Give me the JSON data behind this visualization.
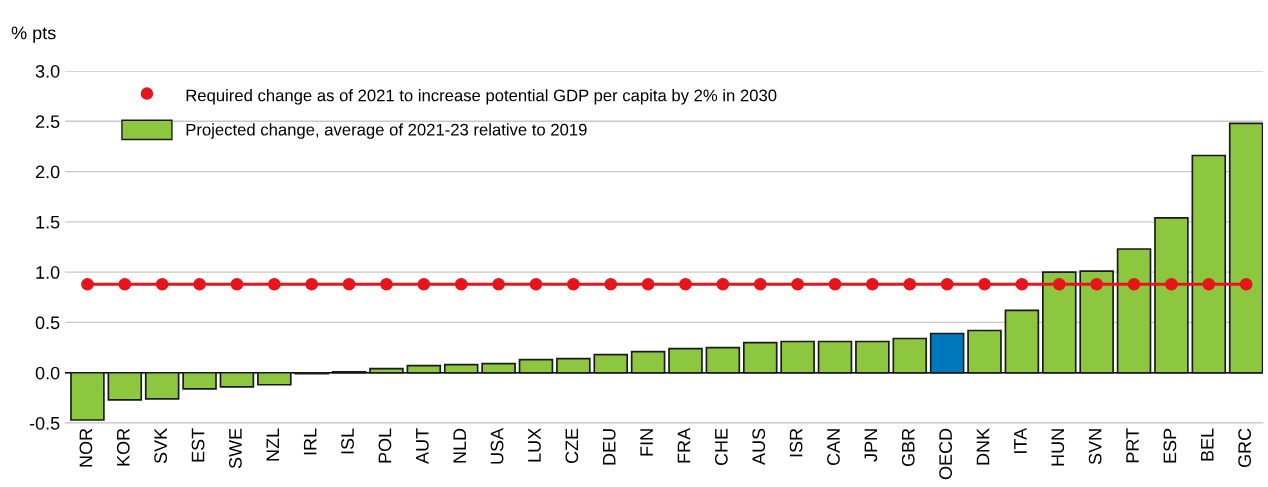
{
  "chart_data": {
    "type": "bar",
    "ylabel": "% pts",
    "categories": [
      "NOR",
      "KOR",
      "SVK",
      "EST",
      "SWE",
      "NZL",
      "IRL",
      "ISL",
      "POL",
      "AUT",
      "NLD",
      "USA",
      "LUX",
      "CZE",
      "DEU",
      "FIN",
      "FRA",
      "CHE",
      "AUS",
      "ISR",
      "CAN",
      "JPN",
      "GBR",
      "OECD",
      "DNK",
      "ITA",
      "HUN",
      "SVN",
      "PRT",
      "ESP",
      "BEL",
      "GRC"
    ],
    "series": [
      {
        "name": "Projected change, average of 2021-23 relative to 2019",
        "color": "#8dc63f",
        "colors": [
          "#8dc63f",
          "#8dc63f",
          "#8dc63f",
          "#8dc63f",
          "#8dc63f",
          "#8dc63f",
          "#8dc63f",
          "#8dc63f",
          "#8dc63f",
          "#8dc63f",
          "#8dc63f",
          "#8dc63f",
          "#8dc63f",
          "#8dc63f",
          "#8dc63f",
          "#8dc63f",
          "#8dc63f",
          "#8dc63f",
          "#8dc63f",
          "#8dc63f",
          "#8dc63f",
          "#8dc63f",
          "#8dc63f",
          "#0078be",
          "#8dc63f",
          "#8dc63f",
          "#8dc63f",
          "#8dc63f",
          "#8dc63f",
          "#8dc63f",
          "#8dc63f",
          "#8dc63f"
        ],
        "values": [
          -0.47,
          -0.27,
          -0.26,
          -0.16,
          -0.14,
          -0.12,
          -0.01,
          0.01,
          0.04,
          0.07,
          0.08,
          0.09,
          0.13,
          0.14,
          0.18,
          0.21,
          0.24,
          0.25,
          0.3,
          0.31,
          0.31,
          0.31,
          0.34,
          0.39,
          0.42,
          0.62,
          1.0,
          1.01,
          1.23,
          1.54,
          2.16,
          2.48
        ]
      },
      {
        "name": "Required change as of 2021 to increase potential GDP per capita by 2% in 2030",
        "type": "line",
        "color": "#e8141c",
        "marker": "circle",
        "values": [
          0.88,
          0.88,
          0.88,
          0.88,
          0.88,
          0.88,
          0.88,
          0.88,
          0.88,
          0.88,
          0.88,
          0.88,
          0.88,
          0.88,
          0.88,
          0.88,
          0.88,
          0.88,
          0.88,
          0.88,
          0.88,
          0.88,
          0.88,
          0.88,
          0.88,
          0.88,
          0.88,
          0.88,
          0.88,
          0.88,
          0.88,
          0.88
        ]
      }
    ],
    "ylim": [
      -0.5,
      3.0
    ],
    "yticks": [
      {
        "value": -0.5,
        "label": "-0.5"
      },
      {
        "value": 0,
        "label": "0.0"
      },
      {
        "value": 0.5,
        "label": "0.5"
      },
      {
        "value": 1.0,
        "label": "1.0"
      },
      {
        "value": 1.5,
        "label": "1.5"
      },
      {
        "value": 2.0,
        "label": "2.0"
      },
      {
        "value": 2.5,
        "label": "2.5"
      },
      {
        "value": 3.0,
        "label": "3.0"
      }
    ],
    "grid": "y",
    "legend": "top left"
  }
}
